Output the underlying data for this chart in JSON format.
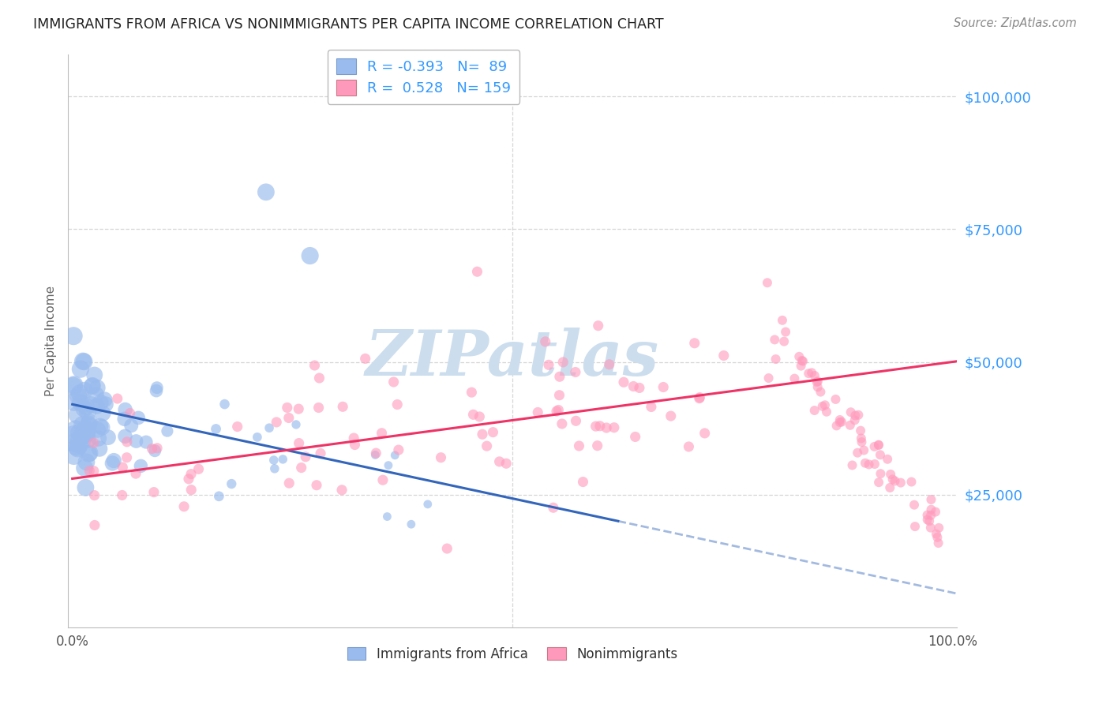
{
  "title": "IMMIGRANTS FROM AFRICA VS NONIMMIGRANTS PER CAPITA INCOME CORRELATION CHART",
  "source": "Source: ZipAtlas.com",
  "ylabel": "Per Capita Income",
  "y_ticks": [
    25000,
    50000,
    75000,
    100000
  ],
  "y_tick_labels": [
    "$25,000",
    "$50,000",
    "$75,000",
    "$100,000"
  ],
  "y_min": 0,
  "y_max": 108000,
  "x_min": -0.005,
  "x_max": 1.005,
  "blue_R": -0.393,
  "blue_N": 89,
  "pink_R": 0.528,
  "pink_N": 159,
  "blue_color": "#99BBEE",
  "pink_color": "#FF99BB",
  "blue_line_color": "#3366BB",
  "pink_line_color": "#EE3366",
  "grid_color": "#CCCCCC",
  "title_color": "#222222",
  "axis_label_color": "#3399FF",
  "watermark_color": "#CCDDED",
  "legend_label_blue": "Immigrants from Africa",
  "legend_label_pink": "Nonimmigrants",
  "blue_line_x0": 0.0,
  "blue_line_y0": 42000,
  "blue_line_x1": 0.62,
  "blue_line_y1": 20000,
  "pink_line_x0": 0.0,
  "pink_line_y0": 28000,
  "pink_line_x1": 1.0,
  "pink_line_y1": 50000
}
